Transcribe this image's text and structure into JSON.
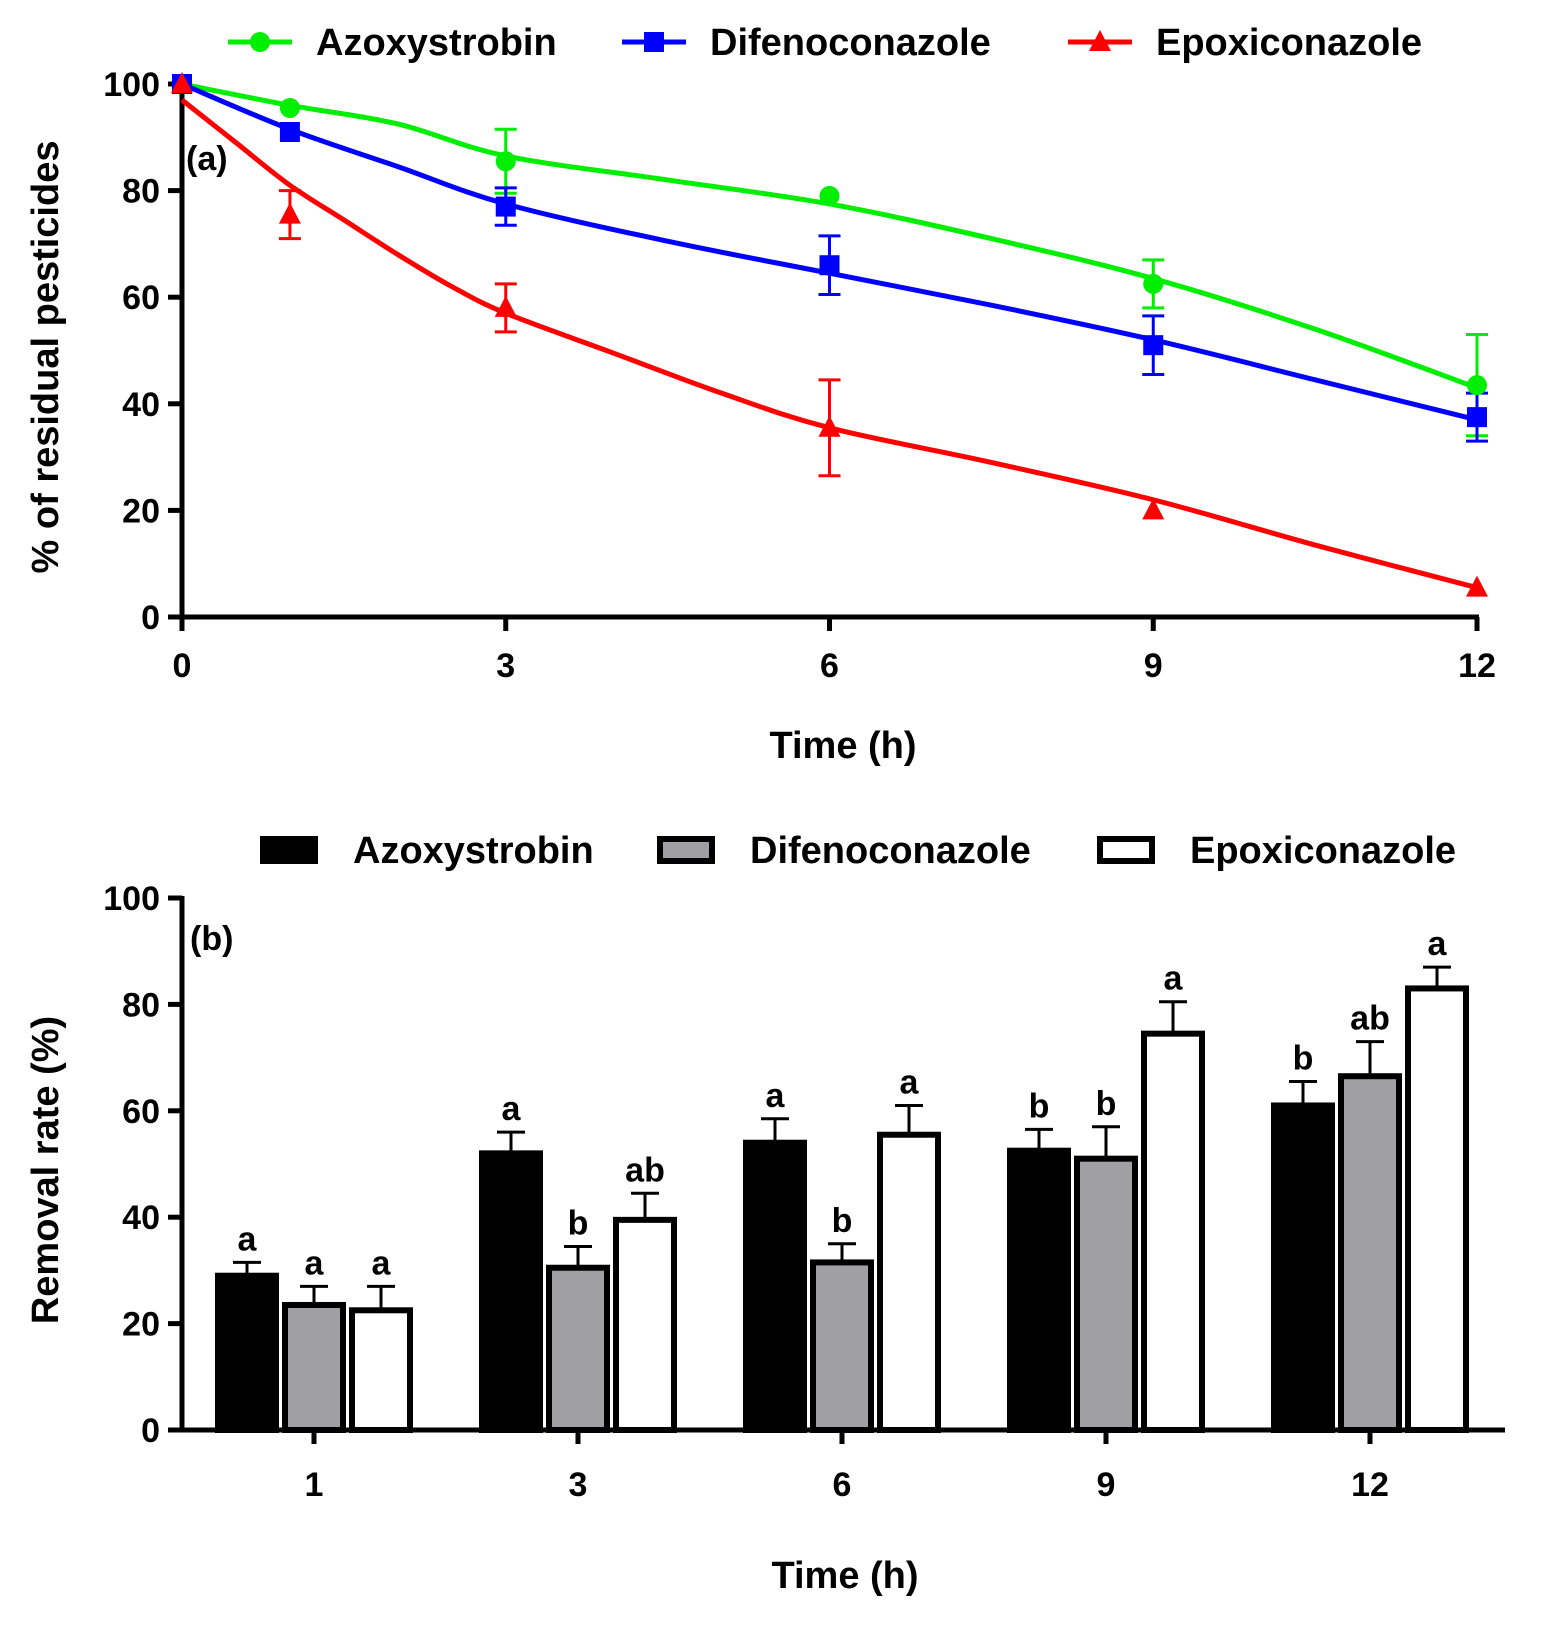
{
  "chart_data": [
    {
      "type": "line",
      "panel_label": "(a)",
      "xlabel": "Time (h)",
      "ylabel": "% of residual pesticides",
      "xlim": [
        0,
        12
      ],
      "ylim": [
        0,
        100
      ],
      "xticks": [
        "0",
        "3",
        "6",
        "9",
        "12"
      ],
      "yticks": [
        "0",
        "20",
        "40",
        "60",
        "80",
        "100"
      ],
      "legend_position": "top",
      "series": [
        {
          "name": "Azoxystrobin",
          "color": "#00ee00",
          "marker": "circle",
          "points": [
            {
              "x": 0,
              "y": 100,
              "err": 0
            },
            {
              "x": 1,
              "y": 95.5,
              "err": 0
            },
            {
              "x": 3,
              "y": 85.5,
              "err": 6
            },
            {
              "x": 6,
              "y": 79,
              "err": 0
            },
            {
              "x": 9,
              "y": 62.5,
              "err": 4.5
            },
            {
              "x": 12,
              "y": 43.5,
              "err": 9.5
            }
          ],
          "fit": [
            [
              0,
              100
            ],
            [
              1,
              96
            ],
            [
              2,
              92.5
            ],
            [
              3,
              86.5
            ],
            [
              4.5,
              82
            ],
            [
              6,
              77.5
            ],
            [
              7.5,
              71
            ],
            [
              9,
              63.5
            ],
            [
              10.5,
              54
            ],
            [
              12,
              43
            ]
          ]
        },
        {
          "name": "Difenoconazole",
          "color": "#0000ff",
          "marker": "square",
          "points": [
            {
              "x": 0,
              "y": 100,
              "err": 0
            },
            {
              "x": 1,
              "y": 91,
              "err": 0
            },
            {
              "x": 3,
              "y": 77,
              "err": 3.5
            },
            {
              "x": 6,
              "y": 66,
              "err": 5.5
            },
            {
              "x": 9,
              "y": 51,
              "err": 5.5
            },
            {
              "x": 12,
              "y": 37.5,
              "err": 4.5
            }
          ],
          "fit": [
            [
              0,
              100
            ],
            [
              1,
              91.5
            ],
            [
              2,
              84.5
            ],
            [
              3,
              77.5
            ],
            [
              4.5,
              70.5
            ],
            [
              6,
              64.5
            ],
            [
              7.5,
              58.5
            ],
            [
              9,
              52
            ],
            [
              10.5,
              44.5
            ],
            [
              12,
              37
            ]
          ]
        },
        {
          "name": "Epoxiconazole",
          "color": "#ff0000",
          "marker": "triangle",
          "points": [
            {
              "x": 0,
              "y": 100,
              "err": 0
            },
            {
              "x": 1,
              "y": 75.5,
              "err": 4.5
            },
            {
              "x": 3,
              "y": 58,
              "err": 4.5
            },
            {
              "x": 6,
              "y": 35.5,
              "err": 9
            },
            {
              "x": 9,
              "y": 20,
              "err": 0
            },
            {
              "x": 12,
              "y": 5.5,
              "err": 0
            }
          ],
          "fit": [
            [
              0,
              97
            ],
            [
              0.5,
              89
            ],
            [
              1,
              81
            ],
            [
              1.5,
              74.5
            ],
            [
              2,
              68
            ],
            [
              2.5,
              62
            ],
            [
              3,
              57
            ],
            [
              4,
              49.5
            ],
            [
              5,
              42
            ],
            [
              6,
              35.5
            ],
            [
              7.5,
              29
            ],
            [
              9,
              22
            ],
            [
              10.5,
              13.5
            ],
            [
              12,
              5.5
            ]
          ]
        }
      ]
    },
    {
      "type": "bar",
      "panel_label": "(b)",
      "xlabel": "Time (h)",
      "ylabel": "Removal rate (%)",
      "ylim": [
        0,
        100
      ],
      "yticks": [
        "0",
        "20",
        "40",
        "60",
        "80",
        "100"
      ],
      "categories": [
        "1",
        "3",
        "6",
        "9",
        "12"
      ],
      "legend_position": "top",
      "series": [
        {
          "name": "Azoxystrobin",
          "color": "#000000",
          "values": [
            29,
            52,
            54,
            52.5,
            61
          ],
          "errors": [
            2.5,
            4,
            4.5,
            4,
            4.5
          ],
          "letters": [
            "a",
            "a",
            "a",
            "b",
            "b"
          ]
        },
        {
          "name": "Difenoconazole",
          "color": "#a0a0a4",
          "values": [
            23.5,
            30.5,
            31.5,
            51,
            66.5
          ],
          "errors": [
            3.5,
            4,
            3.5,
            6,
            6.5
          ],
          "letters": [
            "a",
            "b",
            "b",
            "b",
            "ab"
          ]
        },
        {
          "name": "Epoxiconazole",
          "color": "#ffffff",
          "values": [
            22.5,
            39.5,
            55.5,
            74.5,
            83
          ],
          "errors": [
            4.5,
            5,
            5.5,
            6,
            4
          ],
          "letters": [
            "a",
            "ab",
            "a",
            "a",
            "a"
          ]
        }
      ]
    }
  ]
}
